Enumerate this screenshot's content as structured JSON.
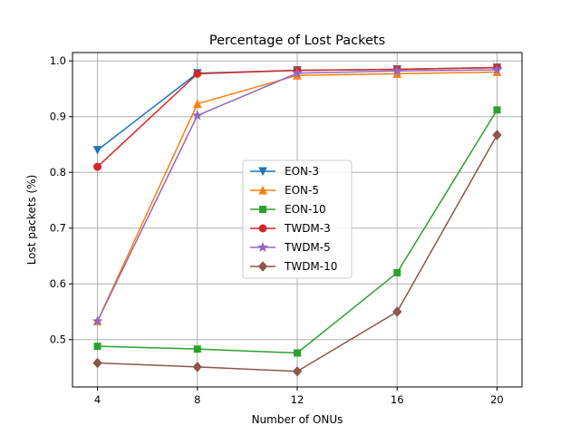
{
  "chart_data": {
    "type": "line",
    "title": "Percentage of Lost Packets",
    "xlabel": "Number of ONUs",
    "ylabel": "Lost packets (%)",
    "x": [
      4,
      8,
      12,
      16,
      20
    ],
    "xlim": [
      3,
      21
    ],
    "ylim": [
      0.415,
      1.015
    ],
    "xticks": [
      "4",
      "8",
      "12",
      "16",
      "20"
    ],
    "yticks": [
      "0.5",
      "0.6",
      "0.7",
      "0.8",
      "0.9",
      "1.0"
    ],
    "grid": true,
    "legend_position": "center",
    "series": [
      {
        "name": "EON-3",
        "color": "#1f77b4",
        "marker": "triangle-down",
        "values": [
          0.84,
          0.978,
          0.983,
          0.985,
          0.988
        ]
      },
      {
        "name": "EON-5",
        "color": "#ff7f0e",
        "marker": "triangle-up",
        "values": [
          0.533,
          0.923,
          0.974,
          0.977,
          0.98
        ]
      },
      {
        "name": "EON-10",
        "color": "#2ca02c",
        "marker": "square",
        "values": [
          0.488,
          0.483,
          0.476,
          0.62,
          0.912
        ]
      },
      {
        "name": "TWDM-3",
        "color": "#d62728",
        "marker": "circle",
        "values": [
          0.81,
          0.977,
          0.983,
          0.985,
          0.988
        ]
      },
      {
        "name": "TWDM-5",
        "color": "#9467bd",
        "marker": "star",
        "values": [
          0.533,
          0.902,
          0.978,
          0.982,
          0.984
        ]
      },
      {
        "name": "TWDM-10",
        "color": "#8c564b",
        "marker": "diamond",
        "values": [
          0.458,
          0.451,
          0.443,
          0.55,
          0.867
        ]
      }
    ]
  }
}
